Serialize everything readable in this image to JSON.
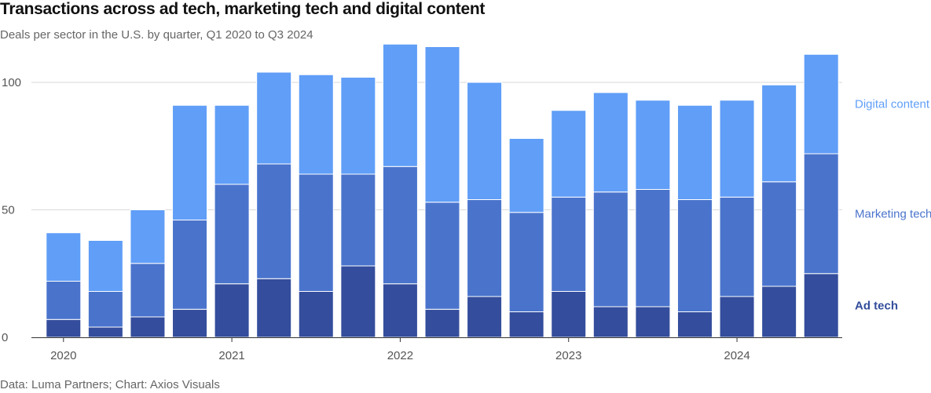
{
  "title": "Transactions across ad tech, marketing tech and digital content",
  "subtitle": "Deals per sector in the U.S. by quarter, Q1 2020 to Q3 2024",
  "source": "Data: Luma Partners; Chart: Axios Visuals",
  "colors": {
    "ad_tech": "#344d9c",
    "marketing_tech": "#4a74cc",
    "digital_content": "#609ef7",
    "grid": "#d9d9d9",
    "axis": "#333333"
  },
  "chart_data": {
    "type": "bar",
    "stacked": true,
    "title": "Transactions across ad tech, marketing tech and digital content",
    "xlabel": "",
    "ylabel": "",
    "ylim": [
      0,
      118
    ],
    "yticks": [
      0,
      50,
      100
    ],
    "categories": [
      "Q1 2020",
      "Q2 2020",
      "Q3 2020",
      "Q4 2020",
      "Q1 2021",
      "Q2 2021",
      "Q3 2021",
      "Q4 2021",
      "Q1 2022",
      "Q2 2022",
      "Q3 2022",
      "Q4 2022",
      "Q1 2023",
      "Q2 2023",
      "Q3 2023",
      "Q4 2023",
      "Q1 2024",
      "Q2 2024",
      "Q3 2024"
    ],
    "x_labels": [
      {
        "label": "2020",
        "index": 0
      },
      {
        "label": "2021",
        "index": 4
      },
      {
        "label": "2022",
        "index": 8
      },
      {
        "label": "2023",
        "index": 12
      },
      {
        "label": "2024",
        "index": 16
      }
    ],
    "series": [
      {
        "name": "Ad tech",
        "color_key": "ad_tech",
        "values": [
          7,
          4,
          8,
          11,
          21,
          23,
          18,
          28,
          21,
          11,
          16,
          10,
          18,
          12,
          12,
          10,
          16,
          20,
          25
        ]
      },
      {
        "name": "Marketing tech",
        "color_key": "marketing_tech",
        "values": [
          15,
          14,
          21,
          35,
          39,
          45,
          46,
          36,
          46,
          42,
          38,
          39,
          37,
          45,
          46,
          44,
          39,
          41,
          47
        ]
      },
      {
        "name": "Digital content",
        "color_key": "digital_content",
        "values": [
          19,
          20,
          21,
          45,
          31,
          36,
          39,
          38,
          48,
          61,
          46,
          29,
          34,
          39,
          35,
          37,
          38,
          38,
          39
        ]
      }
    ],
    "legend": [
      {
        "label": "Digital content",
        "color_key": "digital_content"
      },
      {
        "label": "Marketing tech",
        "color_key": "marketing_tech"
      },
      {
        "label": "Ad tech",
        "color_key": "ad_tech"
      }
    ]
  }
}
